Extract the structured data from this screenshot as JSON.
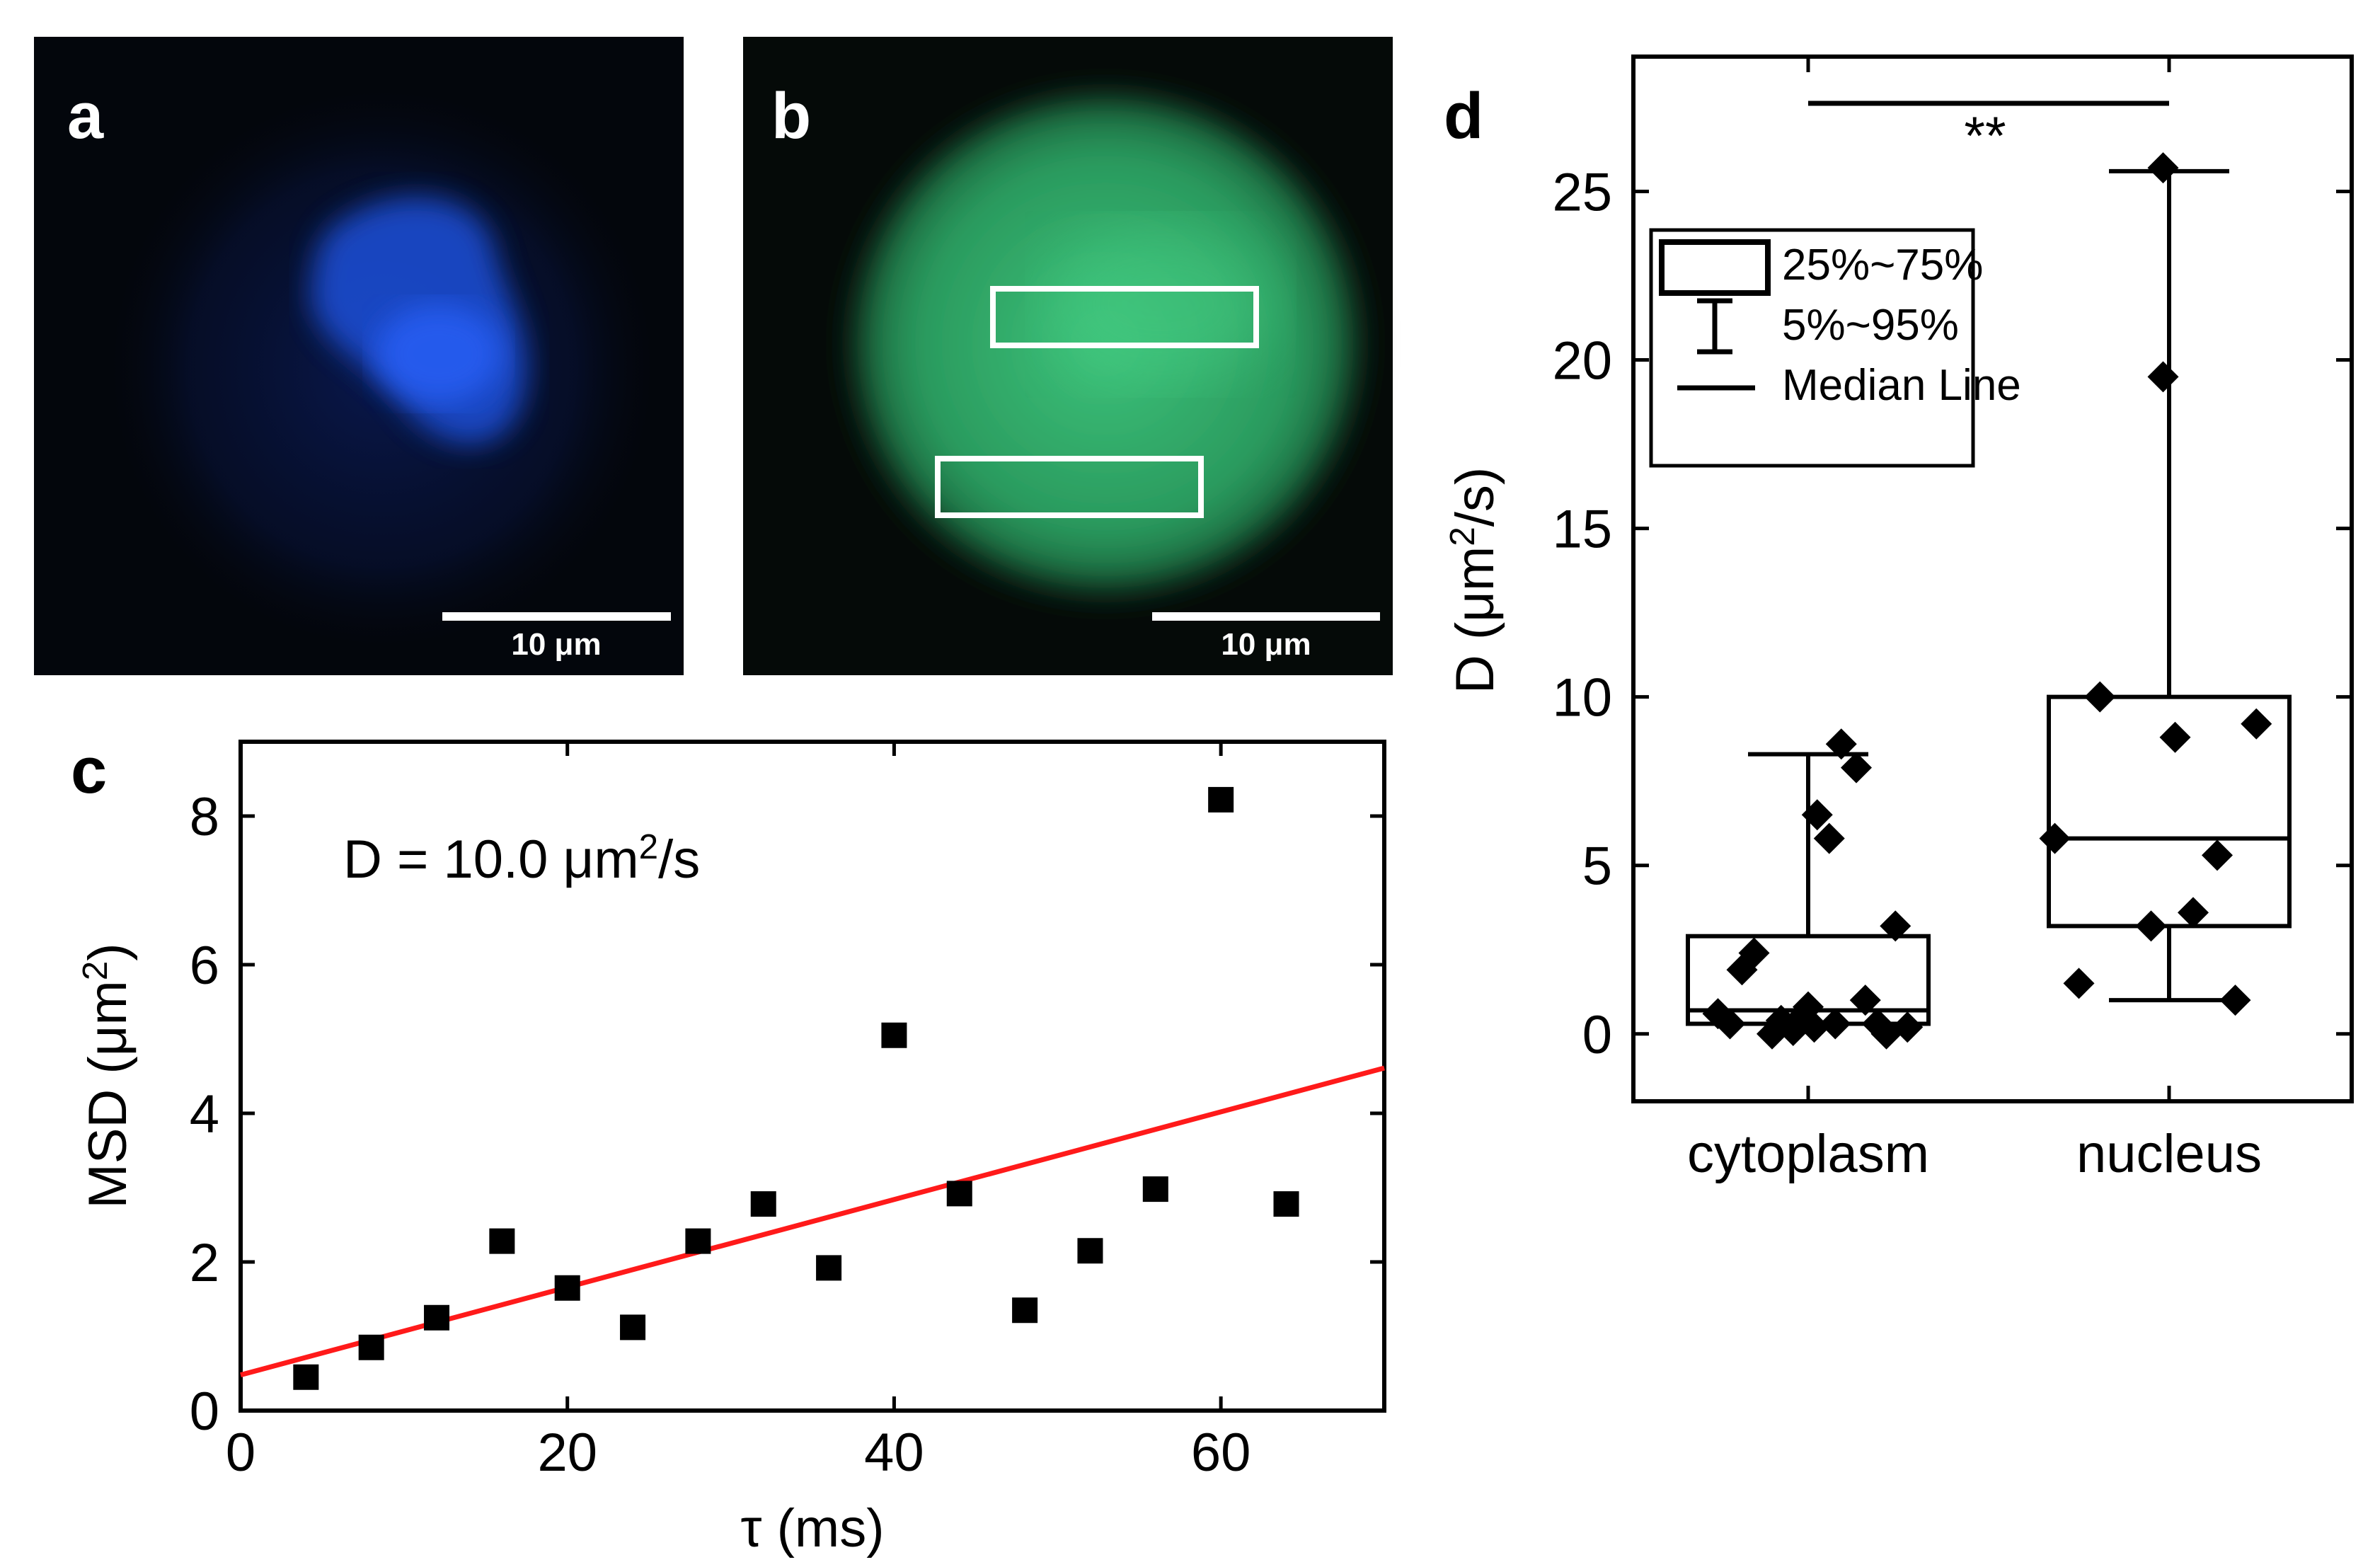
{
  "panels": {
    "a": {
      "label": "a",
      "scalebar_text": "10 μm"
    },
    "b": {
      "label": "b",
      "scalebar_text": "10 μm"
    },
    "c": {
      "label": "c"
    },
    "d": {
      "label": "d"
    }
  },
  "colors": {
    "fit_line": "#ff1a1a",
    "nucleus_stain": "#1e4fe0",
    "green_stain": "#2fb86a"
  },
  "chart_data": [
    {
      "panel": "c",
      "type": "scatter",
      "xlabel": "τ (ms)",
      "ylabel": "MSD (μm²)",
      "xlim": [
        0,
        70
      ],
      "ylim": [
        0,
        9
      ],
      "xticks": [
        0,
        20,
        40,
        60
      ],
      "yticks": [
        0,
        2,
        4,
        6,
        8
      ],
      "x": [
        4,
        8,
        12,
        16,
        20,
        24,
        28,
        32,
        36,
        40,
        44,
        48,
        52,
        56,
        60,
        64
      ],
      "y": [
        0.45,
        0.85,
        1.25,
        2.28,
        1.65,
        1.12,
        2.28,
        2.78,
        1.92,
        5.05,
        2.92,
        1.35,
        2.15,
        2.98,
        8.22,
        2.78
      ],
      "fit": {
        "intercept": 0.48,
        "slope": 0.059
      },
      "annotation": "D = 10.0 μm²/s"
    },
    {
      "panel": "d",
      "type": "box",
      "ylabel": "D (μm²/s)",
      "ylim": [
        -2,
        29
      ],
      "yticks": [
        0,
        5,
        10,
        15,
        20,
        25
      ],
      "categories": [
        "cytoplasm",
        "nucleus"
      ],
      "boxes": [
        {
          "name": "cytoplasm",
          "q1": 0.3,
          "median": 0.7,
          "q3": 2.9,
          "whisker_low": 0.3,
          "whisker_high": 8.3,
          "points": [
            0.6,
            0.3,
            1.9,
            2.4,
            0.0,
            0.4,
            0.1,
            0.5,
            0.8,
            0.2,
            6.5,
            5.8,
            0.3,
            8.6,
            7.9,
            1.0,
            0.3,
            0.0,
            3.2,
            0.2
          ],
          "jitter": [
            -0.3,
            -0.26,
            -0.22,
            -0.18,
            -0.12,
            -0.09,
            -0.05,
            -0.02,
            0.0,
            0.02,
            0.03,
            0.07,
            0.09,
            0.11,
            0.16,
            0.19,
            0.23,
            0.26,
            0.29,
            0.33
          ]
        },
        {
          "name": "nucleus",
          "q1": 3.2,
          "median": 5.8,
          "q3": 10.0,
          "whisker_low": 1.0,
          "whisker_high": 25.6,
          "points": [
            5.8,
            1.5,
            10.0,
            3.2,
            8.8,
            3.6,
            5.3,
            1.0,
            9.2,
            19.5,
            25.7
          ],
          "jitter": [
            -0.38,
            -0.3,
            -0.23,
            -0.06,
            0.02,
            0.08,
            0.16,
            0.22,
            0.29,
            -0.02,
            -0.02
          ]
        }
      ],
      "significance": "**",
      "legend": {
        "box": "25%~75%",
        "whisker": "5%~95%",
        "median": "Median Line"
      }
    }
  ]
}
